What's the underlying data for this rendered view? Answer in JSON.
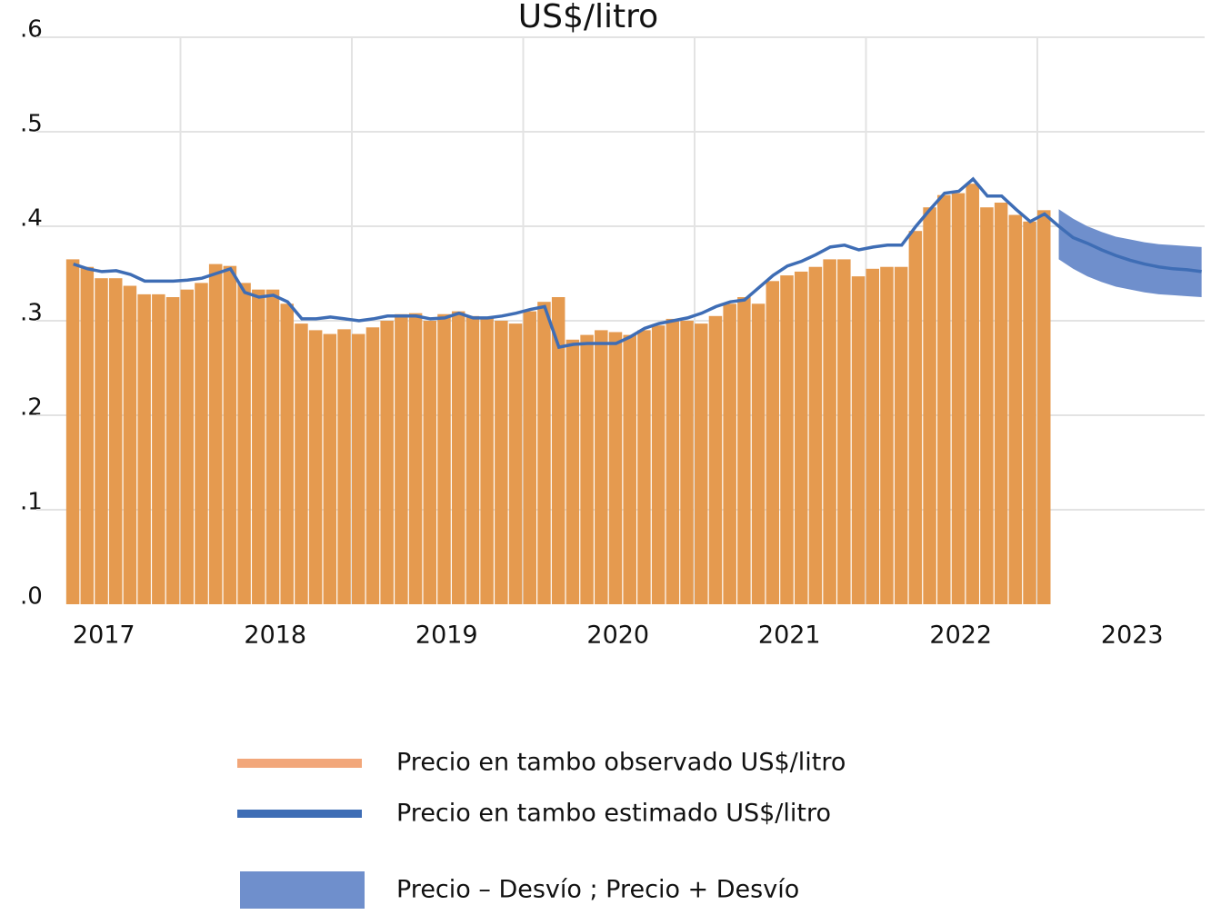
{
  "chart_data": {
    "type": "bar",
    "title": "US$/litro",
    "x_labels": [
      "2017",
      "2018",
      "2019",
      "2020",
      "2021",
      "2022",
      "2023"
    ],
    "ylim": [
      0,
      0.6
    ],
    "yticks": [
      {
        "value": 0,
        "label": ".0"
      },
      {
        "value": 0.1,
        "label": ".1"
      },
      {
        "value": 0.2,
        "label": ".2"
      },
      {
        "value": 0.3,
        "label": ".3"
      },
      {
        "value": 0.4,
        "label": ".4"
      },
      {
        "value": 0.5,
        "label": ".5"
      },
      {
        "value": 0.6,
        "label": ".6"
      }
    ],
    "grid": true,
    "series": [
      {
        "name": "Precio en tambo observado US$/litro",
        "color": "#e59a4f",
        "legend_color": "#f2a77a",
        "values": [
          0.365,
          0.357,
          0.345,
          0.345,
          0.337,
          0.328,
          0.328,
          0.325,
          0.333,
          0.34,
          0.36,
          0.358,
          0.34,
          0.333,
          0.333,
          0.318,
          0.297,
          0.29,
          0.286,
          0.291,
          0.286,
          0.293,
          0.3,
          0.307,
          0.308,
          0.3,
          0.307,
          0.31,
          0.305,
          0.303,
          0.3,
          0.297,
          0.31,
          0.32,
          0.325,
          0.28,
          0.285,
          0.29,
          0.288,
          0.285,
          0.29,
          0.295,
          0.302,
          0.3,
          0.297,
          0.305,
          0.318,
          0.325,
          0.318,
          0.342,
          0.348,
          0.352,
          0.357,
          0.365,
          0.365,
          0.347,
          0.355,
          0.357,
          0.357,
          0.395,
          0.42,
          0.433,
          0.435,
          0.445,
          0.42,
          0.425,
          0.412,
          0.405,
          0.417,
          null,
          null,
          null,
          null,
          null,
          null,
          null,
          null,
          null,
          null,
          null
        ]
      },
      {
        "name": "Precio en tambo estimado US$/litro",
        "color": "#3e6db5",
        "values": [
          0.36,
          0.355,
          0.352,
          0.353,
          0.349,
          0.342,
          0.342,
          0.342,
          0.343,
          0.345,
          0.35,
          0.355,
          0.33,
          0.325,
          0.327,
          0.32,
          0.302,
          0.302,
          0.304,
          0.302,
          0.3,
          0.302,
          0.305,
          0.305,
          0.305,
          0.302,
          0.303,
          0.308,
          0.303,
          0.303,
          0.305,
          0.308,
          0.312,
          0.315,
          0.272,
          0.275,
          0.276,
          0.276,
          0.276,
          0.283,
          0.292,
          0.297,
          0.3,
          0.303,
          0.308,
          0.315,
          0.32,
          0.322,
          0.335,
          0.348,
          0.358,
          0.363,
          0.37,
          0.378,
          0.38,
          0.375,
          0.378,
          0.38,
          0.38,
          0.4,
          0.418,
          0.435,
          0.437,
          0.45,
          0.432,
          0.432,
          0.418,
          0.405,
          0.413,
          0.4,
          0.388,
          0.382,
          0.375,
          0.369,
          0.364,
          0.36,
          0.357,
          0.355,
          0.354,
          0.352
        ]
      },
      {
        "name": "Precio – Desvío ; Precio + Desvío",
        "color": "#6f8fcc",
        "upper": [
          null,
          null,
          null,
          null,
          null,
          null,
          null,
          null,
          null,
          null,
          null,
          null,
          null,
          null,
          null,
          null,
          null,
          null,
          null,
          null,
          null,
          null,
          null,
          null,
          null,
          null,
          null,
          null,
          null,
          null,
          null,
          null,
          null,
          null,
          null,
          null,
          null,
          null,
          null,
          null,
          null,
          null,
          null,
          null,
          null,
          null,
          null,
          null,
          null,
          null,
          null,
          null,
          null,
          null,
          null,
          null,
          null,
          null,
          null,
          null,
          null,
          null,
          null,
          null,
          null,
          null,
          null,
          null,
          null,
          0.418,
          0.408,
          0.4,
          0.394,
          0.389,
          0.386,
          0.383,
          0.381,
          0.38,
          0.379,
          0.378
        ],
        "lower": [
          null,
          null,
          null,
          null,
          null,
          null,
          null,
          null,
          null,
          null,
          null,
          null,
          null,
          null,
          null,
          null,
          null,
          null,
          null,
          null,
          null,
          null,
          null,
          null,
          null,
          null,
          null,
          null,
          null,
          null,
          null,
          null,
          null,
          null,
          null,
          null,
          null,
          null,
          null,
          null,
          null,
          null,
          null,
          null,
          null,
          null,
          null,
          null,
          null,
          null,
          null,
          null,
          null,
          null,
          null,
          null,
          null,
          null,
          null,
          null,
          null,
          null,
          null,
          null,
          null,
          null,
          null,
          null,
          null,
          0.365,
          0.355,
          0.347,
          0.341,
          0.336,
          0.333,
          0.33,
          0.328,
          0.327,
          0.326,
          0.325
        ]
      }
    ]
  }
}
